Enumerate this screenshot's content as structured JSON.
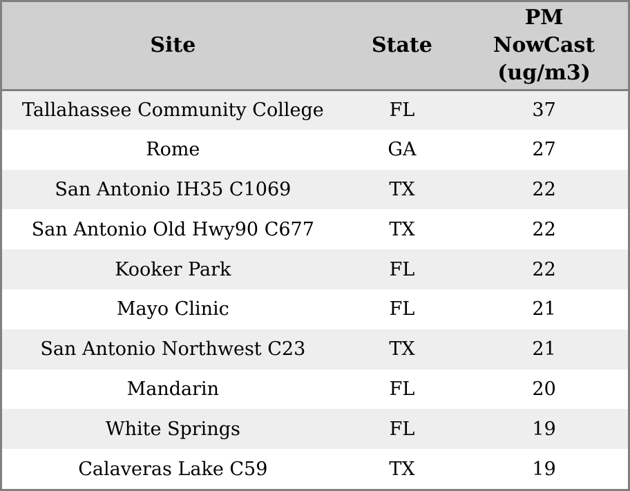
{
  "chart_data": {
    "type": "table",
    "columns": [
      "Site",
      "State",
      "PM NowCast (ug/m3)"
    ],
    "rows": [
      [
        "Tallahassee Community College",
        "FL",
        37
      ],
      [
        "Rome",
        "GA",
        27
      ],
      [
        "San Antonio IH35 C1069",
        "TX",
        22
      ],
      [
        "San Antonio Old Hwy90 C677",
        "TX",
        22
      ],
      [
        "Kooker Park",
        "FL",
        22
      ],
      [
        "Mayo Clinic",
        "FL",
        21
      ],
      [
        "San Antonio Northwest C23",
        "TX",
        21
      ],
      [
        "Mandarin",
        "FL",
        20
      ],
      [
        "White Springs",
        "FL",
        19
      ],
      [
        "Calaveras Lake C59",
        "TX",
        19
      ]
    ]
  },
  "header": {
    "site_label": "Site",
    "state_label": "State",
    "pm_label_lines": [
      "PM",
      "NowCast",
      "(ug/m3)"
    ]
  },
  "colors": {
    "header_bg": "#d0d0d0",
    "row_alt_bg": "#eeeeee",
    "row_bg": "#ffffff",
    "border": "#808080",
    "text": "#000000"
  }
}
